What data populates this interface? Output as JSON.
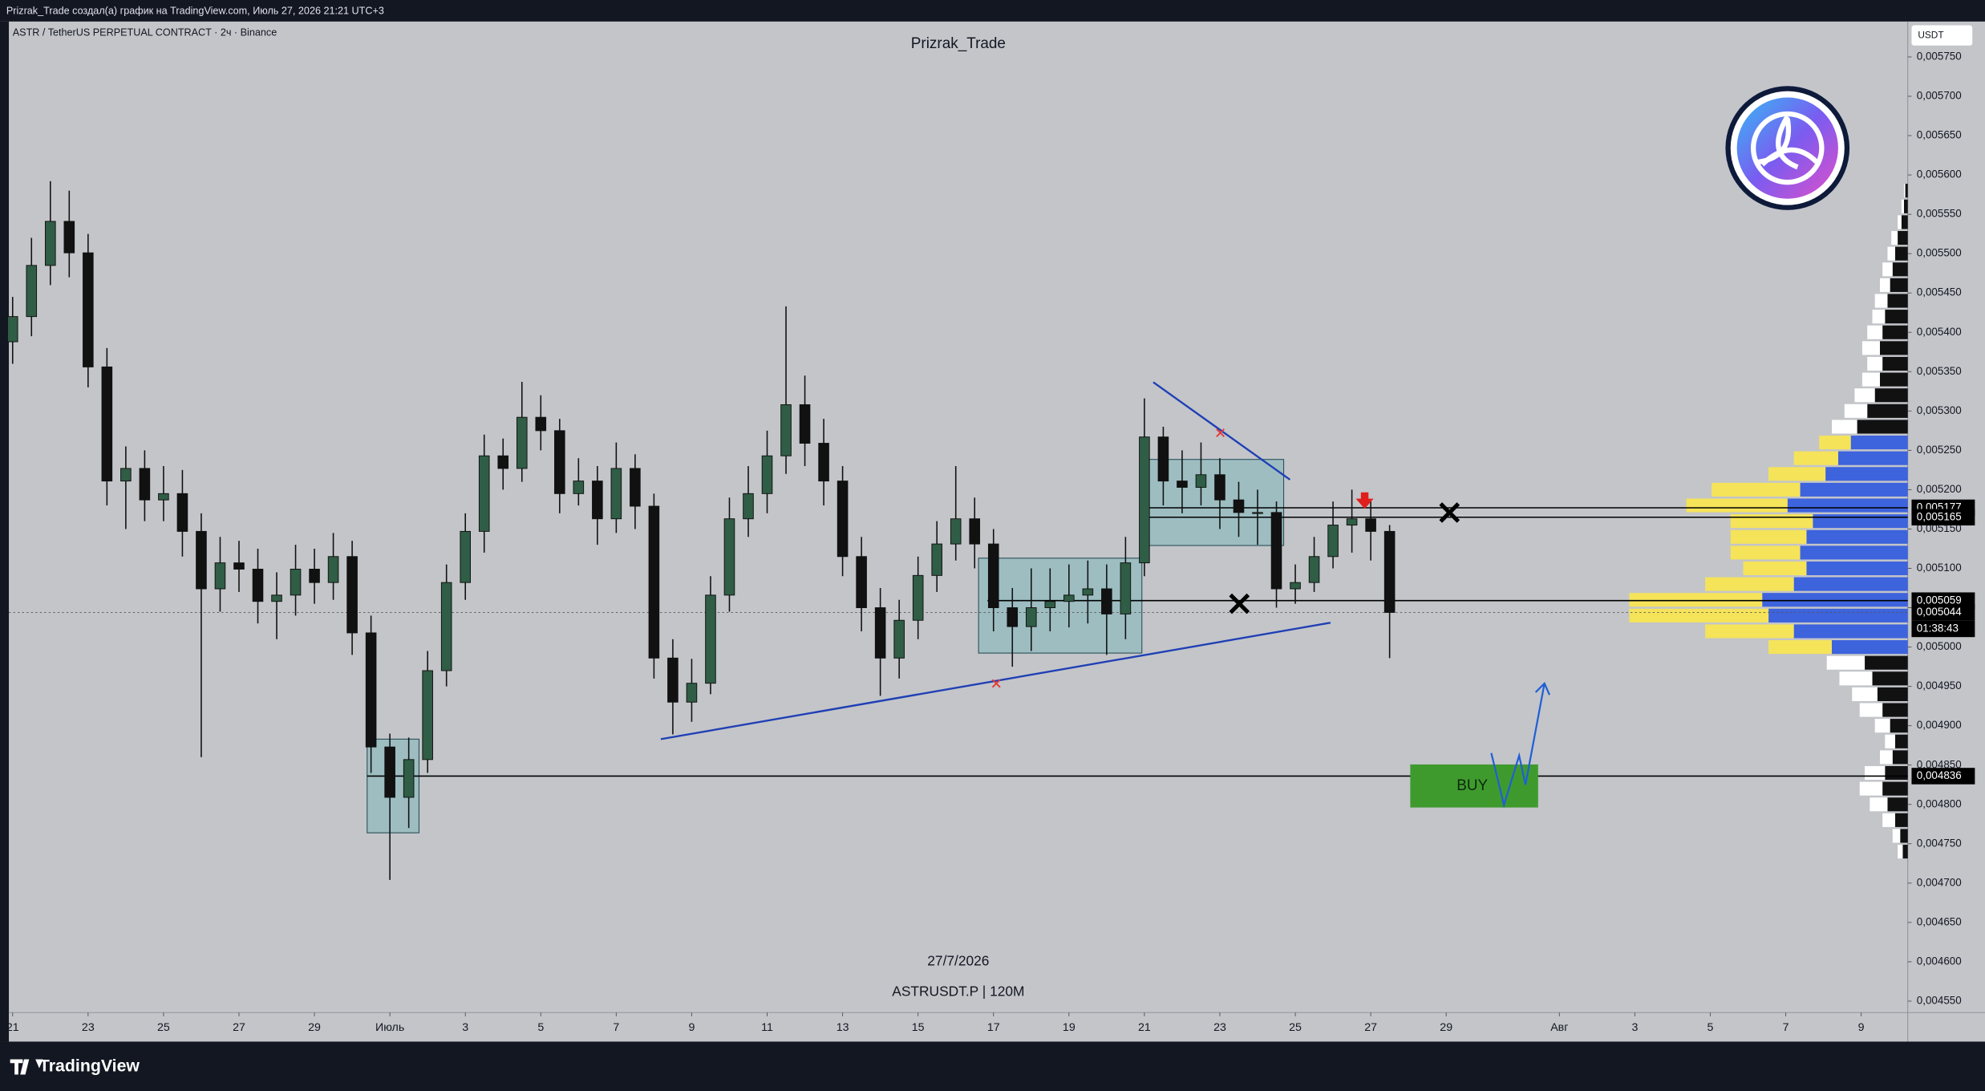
{
  "header": {
    "caption": "Prizrak_Trade создал(а) график на TradingView.com, Июль 27, 2026 21:21 UTC+3"
  },
  "footer": {
    "brand": "TradingView"
  },
  "chart_data": {
    "type": "candlestick",
    "symbol": "ASTR / TetherUS PERPETUAL CONTRACT · 2ч · Binance",
    "title": "Prizrak_Trade",
    "date_caption": "27/7/2026",
    "ticker_caption": "ASTRUSDT.P | 120M",
    "currency": "USDT",
    "annotation": "BUY",
    "countdown": "01:38:43",
    "grid": false,
    "up_color": "#2f5d45",
    "down_color": "#111111",
    "x": [
      0,
      0.5,
      1,
      1.5,
      2,
      2.5,
      3,
      3.5,
      4,
      4.5,
      5,
      5.5,
      6,
      6.5,
      7,
      7.5,
      8,
      8.5,
      9,
      9.5,
      10,
      10.5,
      11,
      11.5,
      12,
      12.5,
      13,
      13.5,
      14,
      14.5,
      15,
      15.5,
      16,
      16.5,
      17,
      17.5,
      18,
      18.5,
      19,
      19.5,
      20,
      20.5,
      21,
      21.5,
      22,
      22.5,
      23,
      23.5,
      24,
      24.5,
      25,
      25.5,
      26,
      26.5,
      27,
      27.5,
      28,
      28.5,
      29,
      29.5,
      30,
      30.5,
      31,
      31.5,
      32,
      32.5,
      33,
      33.5,
      34,
      34.5,
      35,
      35.5,
      36,
      36.5
    ],
    "open": [
      0.005388,
      0.00542,
      0.005485,
      0.005541,
      0.005501,
      0.005356,
      0.005211,
      0.005227,
      0.005187,
      0.005195,
      0.005147,
      0.005074,
      0.005107,
      0.005099,
      0.005058,
      0.005066,
      0.005099,
      0.005082,
      0.005115,
      0.005018,
      0.004873,
      0.004809,
      0.004857,
      0.00497,
      0.005082,
      0.005147,
      0.005243,
      0.005227,
      0.005292,
      0.005275,
      0.005195,
      0.005211,
      0.005163,
      0.005227,
      0.005179,
      0.004986,
      0.00493,
      0.004954,
      0.005066,
      0.005163,
      0.005195,
      0.005243,
      0.005308,
      0.005259,
      0.005211,
      0.005115,
      0.00505,
      0.004986,
      0.005034,
      0.005091,
      0.005131,
      0.005163,
      0.005131,
      0.00505,
      0.005026,
      0.00505,
      0.005058,
      0.005066,
      0.005074,
      0.005042,
      0.005107,
      0.005267,
      0.005211,
      0.005203,
      0.005219,
      0.005187,
      0.005171,
      0.005171,
      0.005074,
      0.005082,
      0.005115,
      0.005155,
      0.005163,
      0.005147
    ],
    "high": [
      0.005445,
      0.00552,
      0.005592,
      0.00558,
      0.005525,
      0.00538,
      0.005255,
      0.00525,
      0.00523,
      0.005225,
      0.00517,
      0.00514,
      0.005135,
      0.005125,
      0.005095,
      0.00513,
      0.005125,
      0.005145,
      0.005135,
      0.00504,
      0.00489,
      0.004885,
      0.004995,
      0.005105,
      0.00517,
      0.00527,
      0.005265,
      0.005337,
      0.00532,
      0.00529,
      0.00524,
      0.00523,
      0.00526,
      0.005245,
      0.005195,
      0.00501,
      0.004985,
      0.00509,
      0.00519,
      0.00523,
      0.005275,
      0.005433,
      0.005345,
      0.00529,
      0.00523,
      0.00514,
      0.005075,
      0.00506,
      0.005115,
      0.00516,
      0.00523,
      0.00519,
      0.00515,
      0.005075,
      0.0051,
      0.0051,
      0.005105,
      0.00511,
      0.005105,
      0.00514,
      0.005316,
      0.00528,
      0.00525,
      0.00526,
      0.00524,
      0.00521,
      0.0052,
      0.005185,
      0.005105,
      0.00514,
      0.005185,
      0.0052,
      0.005185,
      0.005155
    ],
    "low": [
      0.00536,
      0.005395,
      0.00546,
      0.00547,
      0.00533,
      0.00518,
      0.00515,
      0.00516,
      0.00516,
      0.005115,
      0.00486,
      0.005045,
      0.00507,
      0.00503,
      0.00501,
      0.00504,
      0.005055,
      0.00506,
      0.00499,
      0.00484,
      0.004704,
      0.00477,
      0.00484,
      0.00495,
      0.00506,
      0.00512,
      0.0052,
      0.00521,
      0.00525,
      0.00517,
      0.00518,
      0.00513,
      0.005145,
      0.00515,
      0.00496,
      0.004889,
      0.004905,
      0.00494,
      0.005045,
      0.00514,
      0.00517,
      0.00522,
      0.00523,
      0.00518,
      0.00509,
      0.00502,
      0.004938,
      0.00496,
      0.00501,
      0.00507,
      0.00511,
      0.0051,
      0.00502,
      0.004975,
      0.004995,
      0.00502,
      0.005025,
      0.00503,
      0.00499,
      0.00501,
      0.00509,
      0.00518,
      0.00517,
      0.00518,
      0.00515,
      0.00514,
      0.00513,
      0.00505,
      0.005055,
      0.00507,
      0.0051,
      0.00512,
      0.00511,
      0.004986
    ],
    "close": [
      0.00542,
      0.005485,
      0.005541,
      0.005501,
      0.005356,
      0.005211,
      0.005227,
      0.005187,
      0.005195,
      0.005147,
      0.005074,
      0.005107,
      0.005099,
      0.005058,
      0.005066,
      0.005099,
      0.005082,
      0.005115,
      0.005018,
      0.004873,
      0.004809,
      0.004857,
      0.00497,
      0.005082,
      0.005147,
      0.005243,
      0.005227,
      0.005292,
      0.005275,
      0.005195,
      0.005211,
      0.005163,
      0.005227,
      0.005179,
      0.004986,
      0.00493,
      0.004954,
      0.005066,
      0.005163,
      0.005195,
      0.005243,
      0.005308,
      0.005259,
      0.005211,
      0.005115,
      0.00505,
      0.004986,
      0.005034,
      0.005091,
      0.005131,
      0.005163,
      0.005131,
      0.00505,
      0.005026,
      0.00505,
      0.005058,
      0.005066,
      0.005074,
      0.005042,
      0.005107,
      0.005267,
      0.005211,
      0.005203,
      0.005219,
      0.005187,
      0.005171,
      0.005171,
      0.005074,
      0.005082,
      0.005115,
      0.005155,
      0.005163,
      0.005147,
      0.005044
    ],
    "xlim": [
      -0.1,
      50.235
    ],
    "xticks": [
      {
        "value": 0,
        "label": "21"
      },
      {
        "value": 2,
        "label": "23"
      },
      {
        "value": 4,
        "label": "25"
      },
      {
        "value": 6,
        "label": "27"
      },
      {
        "value": 8,
        "label": "29"
      },
      {
        "value": 10,
        "label": "Июль"
      },
      {
        "value": 12,
        "label": "3"
      },
      {
        "value": 14,
        "label": "5"
      },
      {
        "value": 16,
        "label": "7"
      },
      {
        "value": 18,
        "label": "9"
      },
      {
        "value": 20,
        "label": "11"
      },
      {
        "value": 22,
        "label": "13"
      },
      {
        "value": 24,
        "label": "15"
      },
      {
        "value": 26,
        "label": "17"
      },
      {
        "value": 28,
        "label": "19"
      },
      {
        "value": 30,
        "label": "21"
      },
      {
        "value": 32,
        "label": "23"
      },
      {
        "value": 34,
        "label": "25"
      },
      {
        "value": 36,
        "label": "27"
      },
      {
        "value": 38,
        "label": "29"
      },
      {
        "value": 41,
        "label": "Авг"
      },
      {
        "value": 43,
        "label": "3"
      },
      {
        "value": 45,
        "label": "5"
      },
      {
        "value": 47,
        "label": "7"
      },
      {
        "value": 49,
        "label": "9"
      }
    ],
    "ylim": [
      0.0045355,
      0.005795
    ],
    "yticks": [
      {
        "value": 0.00455,
        "label": "0,004550"
      },
      {
        "value": 0.0046,
        "label": "0,004600"
      },
      {
        "value": 0.00465,
        "label": "0,004650"
      },
      {
        "value": 0.0047,
        "label": "0,004700"
      },
      {
        "value": 0.00475,
        "label": "0,004750"
      },
      {
        "value": 0.0048,
        "label": "0,004800"
      },
      {
        "value": 0.00485,
        "label": "0,004850"
      },
      {
        "value": 0.0049,
        "label": "0,004900"
      },
      {
        "value": 0.00495,
        "label": "0,004950"
      },
      {
        "value": 0.005,
        "label": "0,005000"
      },
      {
        "value": 0.00505,
        "label": "0,005050"
      },
      {
        "value": 0.0051,
        "label": "0,005100"
      },
      {
        "value": 0.00515,
        "label": "0,005150"
      },
      {
        "value": 0.0052,
        "label": "0,005200"
      },
      {
        "value": 0.00525,
        "label": "0,005250"
      },
      {
        "value": 0.0053,
        "label": "0,005300"
      },
      {
        "value": 0.00535,
        "label": "0,005350"
      },
      {
        "value": 0.0054,
        "label": "0,005400"
      },
      {
        "value": 0.00545,
        "label": "0,005450"
      },
      {
        "value": 0.0055,
        "label": "0,005500"
      },
      {
        "value": 0.00555,
        "label": "0,005550"
      },
      {
        "value": 0.0056,
        "label": "0,005600"
      },
      {
        "value": 0.00565,
        "label": "0,005650"
      },
      {
        "value": 0.0057,
        "label": "0,005700"
      },
      {
        "value": 0.00575,
        "label": "0,005750"
      }
    ],
    "price_labels": [
      {
        "value": 0.005177,
        "label": "0,005177"
      },
      {
        "value": 0.005165,
        "label": "0,005165"
      },
      {
        "value": 0.005059,
        "label": "0,005059"
      },
      {
        "value": 0.005044,
        "label": "0,005044"
      },
      {
        "value": 0.004836,
        "label": "0,004836"
      }
    ],
    "volume_profile": {
      "prices": [
        0.00474,
        0.00476,
        0.00478,
        0.0048,
        0.00482,
        0.00484,
        0.00486,
        0.00488,
        0.0049,
        0.00492,
        0.00494,
        0.00496,
        0.00498,
        0.005,
        0.00502,
        0.00504,
        0.00506,
        0.00508,
        0.0051,
        0.00512,
        0.00514,
        0.00516,
        0.00518,
        0.0052,
        0.00522,
        0.00524,
        0.00526,
        0.00528,
        0.0053,
        0.00532,
        0.00534,
        0.00536,
        0.00538,
        0.0054,
        0.00542,
        0.00544,
        0.00546,
        0.00548,
        0.0055,
        0.00552,
        0.00554,
        0.00556,
        0.00558
      ],
      "up": [
        4,
        6,
        10,
        14,
        18,
        16,
        10,
        8,
        12,
        18,
        20,
        26,
        30,
        50,
        70,
        110,
        105,
        70,
        50,
        55,
        60,
        65,
        80,
        70,
        45,
        35,
        25,
        20,
        18,
        16,
        14,
        12,
        14,
        12,
        10,
        10,
        8,
        8,
        6,
        5,
        3,
        2,
        1
      ],
      "down": [
        4,
        6,
        10,
        16,
        20,
        18,
        12,
        10,
        14,
        20,
        24,
        28,
        34,
        60,
        90,
        110,
        115,
        90,
        80,
        85,
        80,
        75,
        95,
        85,
        65,
        55,
        45,
        40,
        32,
        26,
        22,
        20,
        22,
        20,
        18,
        16,
        14,
        12,
        10,
        8,
        5,
        3,
        2
      ],
      "value_area": [
        0.00499,
        0.00527
      ],
      "colors": {
        "up": "#ffffff",
        "down": "#111111",
        "va_up": "#f5e35a",
        "va_down": "#3d63dd"
      }
    }
  }
}
